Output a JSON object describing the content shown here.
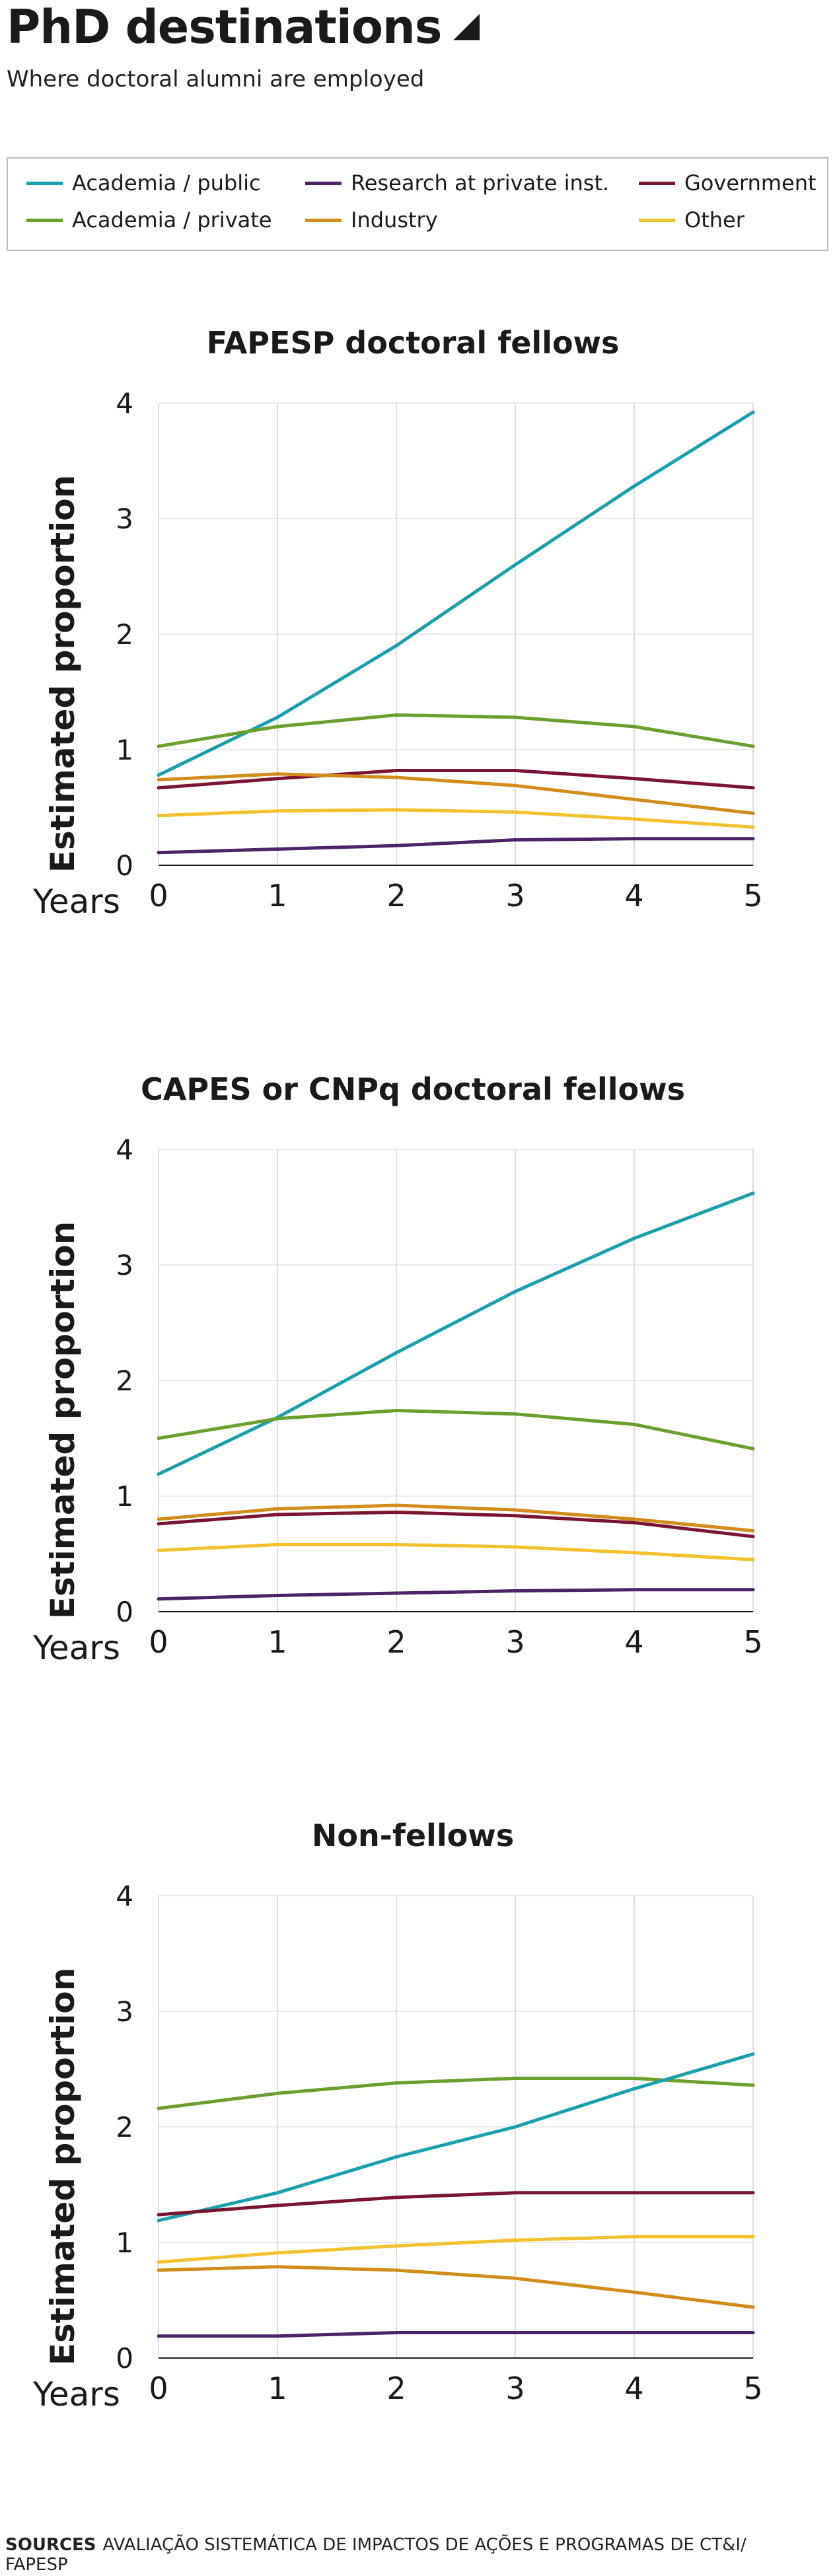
{
  "header": {
    "title": "PhD destinations",
    "subtitle": "Where doctoral alumni are employed"
  },
  "legend": [
    {
      "label": "Academia / public",
      "color": "#1aa0ad"
    },
    {
      "label": "Research at private inst.",
      "color": "#4a2466"
    },
    {
      "label": "Government",
      "color": "#7a1431"
    },
    {
      "label": "Academia / private",
      "color": "#6b9e2e"
    },
    {
      "label": "Industry",
      "color": "#d18c1a"
    },
    {
      "label": "Other",
      "color": "#f2c12e"
    }
  ],
  "footer": {
    "sources_label": "SOURCES",
    "sources_text": "AVALIAÇÃO SISTEMÁTICA DE IMPACTOS DE AÇÕES E PROGRAMAS DE CT&I/ FAPESP"
  },
  "chart_data": [
    {
      "type": "line",
      "title": "FAPESP doctoral fellows",
      "xlabel": "Years",
      "ylabel": "Estimated proportion",
      "x": [
        0,
        1,
        2,
        3,
        4,
        5
      ],
      "xticks": [
        "0",
        "1",
        "2",
        "3",
        "4",
        "5"
      ],
      "yticks": [
        "0",
        "1",
        "2",
        "3",
        "4"
      ],
      "ylim": [
        0,
        4
      ],
      "grid": true,
      "series": [
        {
          "name": "Academia / public",
          "color": "#1aa0ad",
          "values": [
            0.78,
            1.28,
            1.9,
            2.6,
            3.28,
            3.92
          ]
        },
        {
          "name": "Academia / private",
          "color": "#6b9e2e",
          "values": [
            1.03,
            1.2,
            1.3,
            1.28,
            1.2,
            1.03
          ]
        },
        {
          "name": "Government",
          "color": "#7a1431",
          "values": [
            0.67,
            0.75,
            0.82,
            0.82,
            0.75,
            0.67
          ]
        },
        {
          "name": "Industry",
          "color": "#d18c1a",
          "values": [
            0.74,
            0.79,
            0.76,
            0.69,
            0.57,
            0.45
          ]
        },
        {
          "name": "Other",
          "color": "#f2c12e",
          "values": [
            0.43,
            0.47,
            0.48,
            0.46,
            0.4,
            0.33
          ]
        },
        {
          "name": "Research at private inst.",
          "color": "#4a2466",
          "values": [
            0.11,
            0.14,
            0.17,
            0.22,
            0.23,
            0.23
          ]
        }
      ]
    },
    {
      "type": "line",
      "title": "CAPES or CNPq doctoral fellows",
      "xlabel": "Years",
      "ylabel": "Estimated proportion",
      "x": [
        0,
        1,
        2,
        3,
        4,
        5
      ],
      "xticks": [
        "0",
        "1",
        "2",
        "3",
        "4",
        "5"
      ],
      "yticks": [
        "0",
        "1",
        "2",
        "3",
        "4"
      ],
      "ylim": [
        0,
        4
      ],
      "grid": true,
      "series": [
        {
          "name": "Academia / public",
          "color": "#1aa0ad",
          "values": [
            1.19,
            1.68,
            2.24,
            2.77,
            3.23,
            3.62
          ]
        },
        {
          "name": "Academia / private",
          "color": "#6b9e2e",
          "values": [
            1.5,
            1.67,
            1.74,
            1.71,
            1.62,
            1.41
          ]
        },
        {
          "name": "Industry",
          "color": "#d18c1a",
          "values": [
            0.8,
            0.89,
            0.92,
            0.88,
            0.8,
            0.7
          ]
        },
        {
          "name": "Government",
          "color": "#7a1431",
          "values": [
            0.76,
            0.84,
            0.86,
            0.83,
            0.77,
            0.65
          ]
        },
        {
          "name": "Other",
          "color": "#f2c12e",
          "values": [
            0.53,
            0.58,
            0.58,
            0.56,
            0.51,
            0.45
          ]
        },
        {
          "name": "Research at private inst.",
          "color": "#4a2466",
          "values": [
            0.11,
            0.14,
            0.16,
            0.18,
            0.19,
            0.19
          ]
        }
      ]
    },
    {
      "type": "line",
      "title": "Non-fellows",
      "xlabel": "Years",
      "ylabel": "Estimated proportion",
      "x": [
        0,
        1,
        2,
        3,
        4,
        5
      ],
      "xticks": [
        "0",
        "1",
        "2",
        "3",
        "4",
        "5"
      ],
      "yticks": [
        "0",
        "1",
        "2",
        "3",
        "4"
      ],
      "ylim": [
        0,
        4
      ],
      "grid": true,
      "series": [
        {
          "name": "Academia / private",
          "color": "#6b9e2e",
          "values": [
            2.16,
            2.29,
            2.38,
            2.42,
            2.42,
            2.36
          ]
        },
        {
          "name": "Academia / public",
          "color": "#1aa0ad",
          "values": [
            1.19,
            1.43,
            1.74,
            2.0,
            2.33,
            2.63
          ]
        },
        {
          "name": "Government",
          "color": "#7a1431",
          "values": [
            1.24,
            1.32,
            1.39,
            1.43,
            1.43,
            1.43
          ]
        },
        {
          "name": "Other",
          "color": "#f2c12e",
          "values": [
            0.83,
            0.91,
            0.97,
            1.02,
            1.05,
            1.05
          ]
        },
        {
          "name": "Industry",
          "color": "#d18c1a",
          "values": [
            0.76,
            0.79,
            0.76,
            0.69,
            0.57,
            0.44
          ]
        },
        {
          "name": "Research at private inst.",
          "color": "#4a2466",
          "values": [
            0.19,
            0.19,
            0.22,
            0.22,
            0.22,
            0.22
          ]
        }
      ]
    }
  ]
}
